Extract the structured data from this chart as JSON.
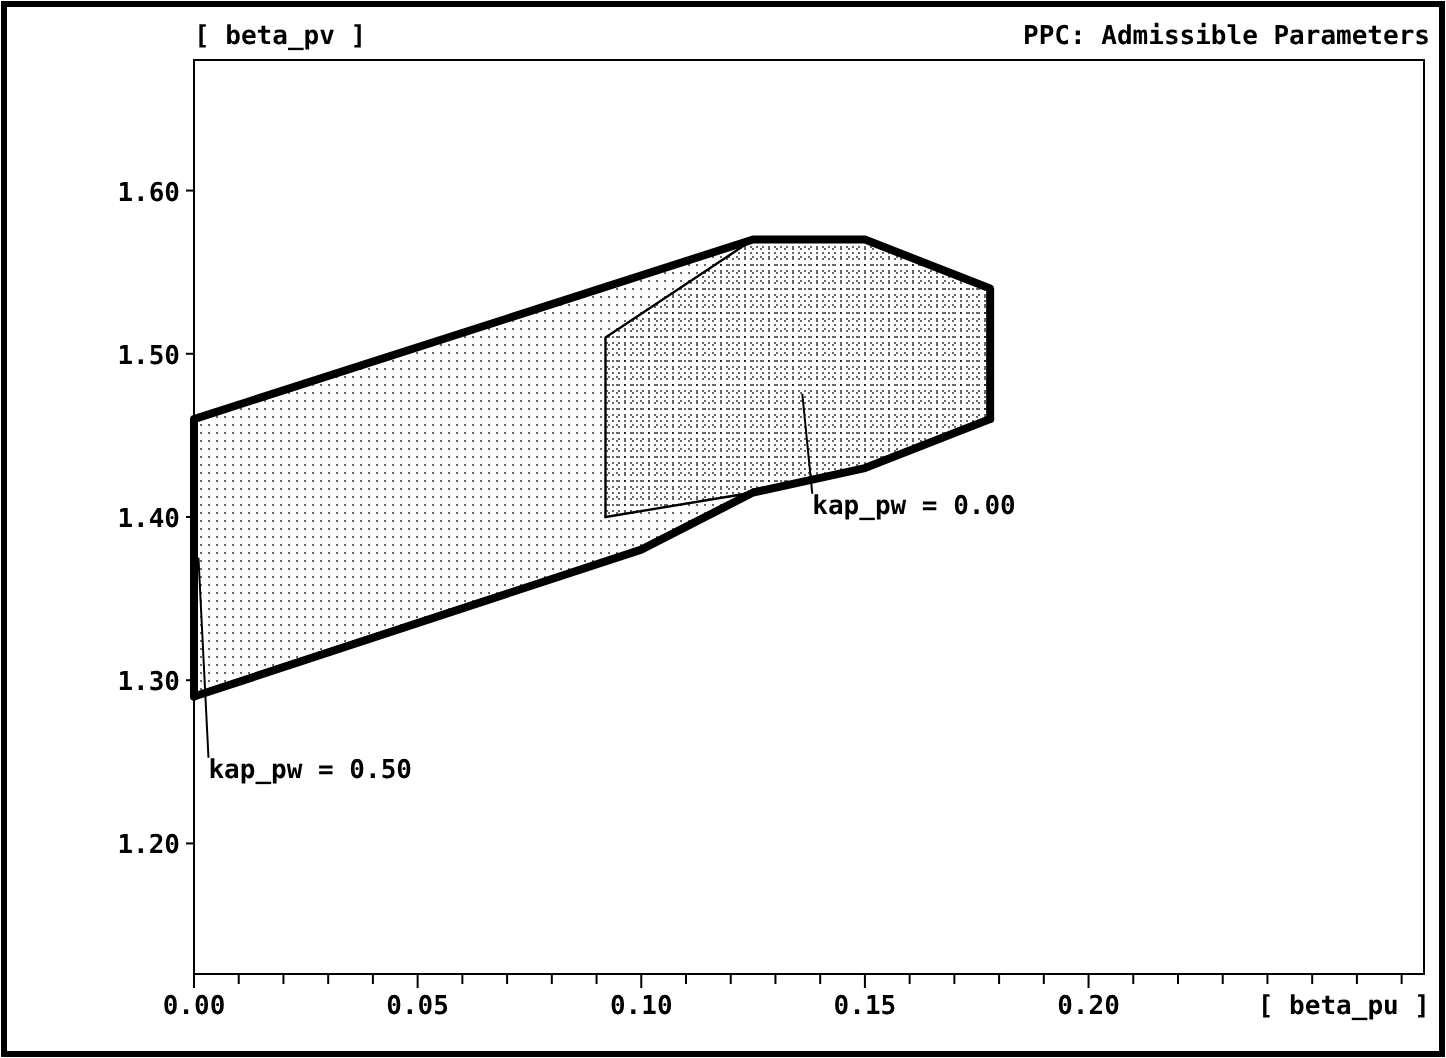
{
  "chart_data": {
    "type": "line",
    "title": "PPC: Admissible Parameters",
    "xlabel": "[ beta_pu ]",
    "ylabel": "[ beta_pv ]",
    "xlim": [
      0,
      0.275
    ],
    "ylim": [
      1.12,
      1.68
    ],
    "xticks": [
      {
        "value": 0,
        "label": "0.00"
      },
      {
        "value": 0.01,
        "label": null
      },
      {
        "value": 0.02,
        "label": null
      },
      {
        "value": 0.03,
        "label": null
      },
      {
        "value": 0.04,
        "label": null
      },
      {
        "value": 0.05,
        "label": "0.05"
      },
      {
        "value": 0.06,
        "label": null
      },
      {
        "value": 0.07,
        "label": null
      },
      {
        "value": 0.08,
        "label": null
      },
      {
        "value": 0.09,
        "label": null
      },
      {
        "value": 0.1,
        "label": "0.10"
      },
      {
        "value": 0.11,
        "label": null
      },
      {
        "value": 0.12,
        "label": null
      },
      {
        "value": 0.13,
        "label": null
      },
      {
        "value": 0.14,
        "label": null
      },
      {
        "value": 0.15,
        "label": "0.15"
      },
      {
        "value": 0.16,
        "label": null
      },
      {
        "value": 0.17,
        "label": null
      },
      {
        "value": 0.18,
        "label": null
      },
      {
        "value": 0.19,
        "label": null
      },
      {
        "value": 0.2,
        "label": "0.20"
      },
      {
        "value": 0.21,
        "label": null
      },
      {
        "value": 0.22,
        "label": null
      },
      {
        "value": 0.23,
        "label": null
      },
      {
        "value": 0.24,
        "label": null
      },
      {
        "value": 0.25,
        "label": null
      },
      {
        "value": 0.26,
        "label": null
      },
      {
        "value": 0.27,
        "label": null
      }
    ],
    "yticks": [
      {
        "value": 1.2,
        "label": "1.20"
      },
      {
        "value": 1.3,
        "label": "1.30"
      },
      {
        "value": 1.4,
        "label": "1.40"
      },
      {
        "value": 1.5,
        "label": "1.50"
      },
      {
        "value": 1.6,
        "label": "1.60"
      }
    ],
    "grid": false,
    "marker": "none",
    "line_style": "solid",
    "series": [
      {
        "color": "#000000",
        "x": [
          0,
          0,
          0.125,
          0.15,
          0.178,
          0.178
        ],
        "values": [
          1.29,
          1.46,
          1.57,
          1.57,
          1.54,
          1.46
        ]
      },
      {
        "color": "#000000",
        "x": [
          0,
          0.1,
          0.125,
          0.15,
          0.178
        ],
        "values": [
          1.29,
          1.38,
          1.415,
          1.43,
          1.46
        ]
      },
      {
        "color": "#000000",
        "x": [
          0.092,
          0.092,
          0.125
        ],
        "values": [
          1.4,
          1.51,
          1.57
        ]
      },
      {
        "color": "#000000",
        "x": [
          0.092,
          0.125
        ],
        "values": [
          1.4,
          1.415
        ]
      }
    ],
    "annotations": [
      "kap_pw = 0.00",
      {
        "text": "kap_pw = 0.50",
        "x": 0.001,
        "y": 1.375
      }
    ]
  }
}
